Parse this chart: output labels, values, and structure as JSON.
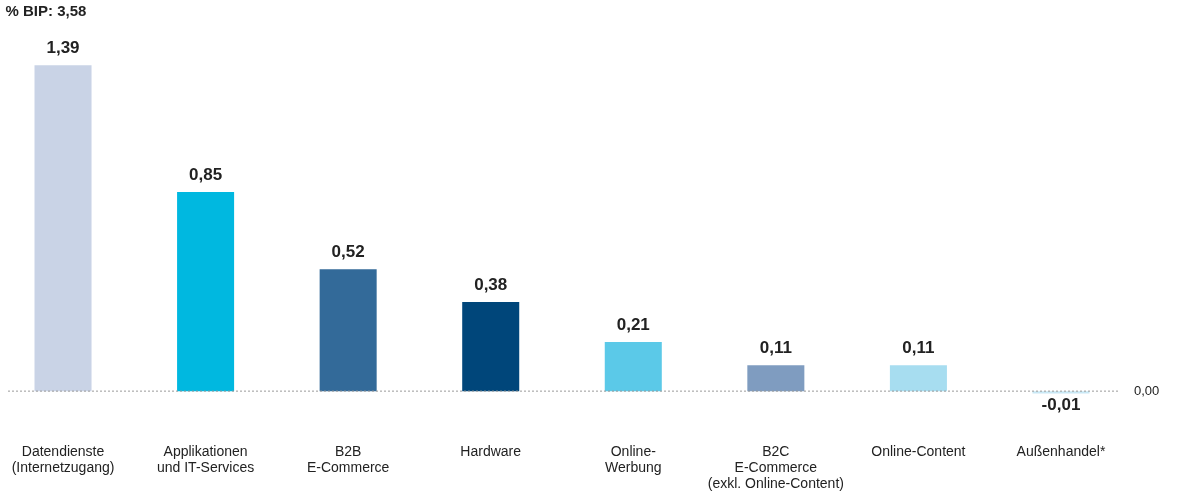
{
  "chart_data": {
    "type": "bar",
    "title": "% BIP: 3,58",
    "categories": [
      "Datendienste\n(Internetzugang)",
      "Applikationen\nund IT-Services",
      "B2B\nE-Commerce",
      "Hardware",
      "Online-\nWerbung",
      "B2C\nE-Commerce\n(exkl. Online-Content)",
      "Online-Content",
      "Außenhandel*"
    ],
    "values": [
      1.39,
      0.85,
      0.52,
      0.38,
      0.21,
      0.11,
      0.11,
      -0.01
    ],
    "colors": [
      "#c9d3e6",
      "#00b8e0",
      "#336a99",
      "#00467a",
      "#5bc9e8",
      "#7f9cc0",
      "#a7ddf0",
      "#c9e8f5"
    ],
    "value_labels": [
      "1,39",
      "0,85",
      "0,52",
      "0,38",
      "0,21",
      "0,11",
      "0,11",
      "-0,01"
    ],
    "ref_lines": [
      {
        "axis": "y",
        "value": 0,
        "label": "0,00",
        "line_style": "dotted",
        "color": "#999999"
      }
    ]
  }
}
